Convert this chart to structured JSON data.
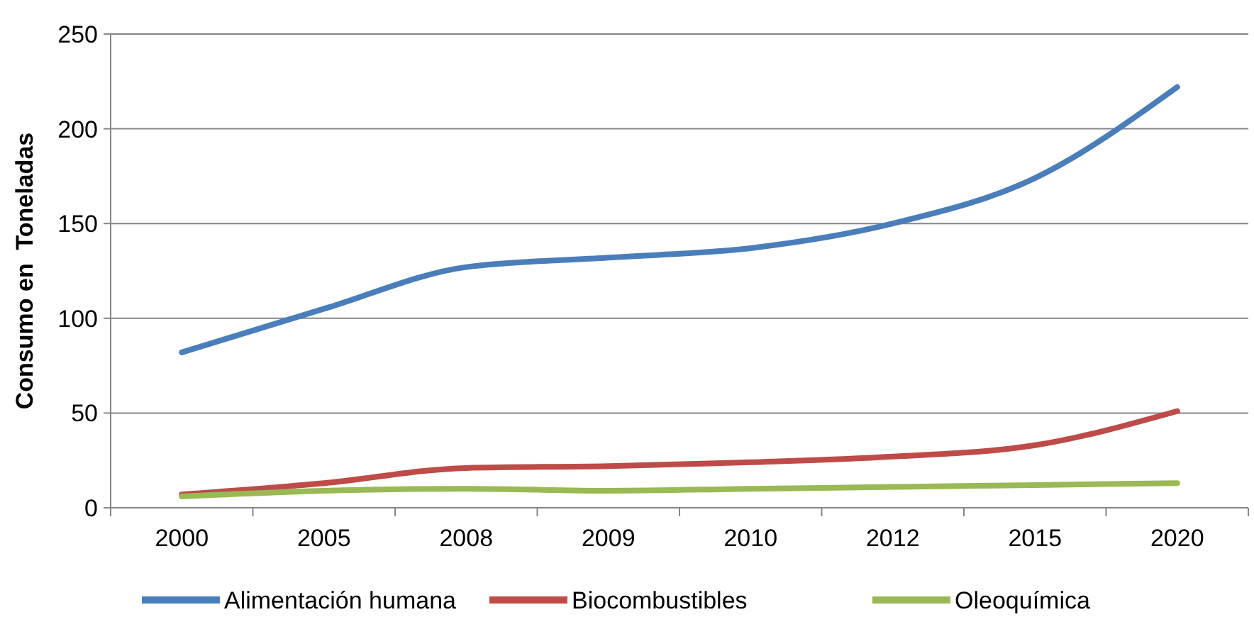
{
  "chart_data": {
    "type": "line",
    "ylabel": "Consumo en  Toneladas",
    "categories": [
      "2000",
      "2005",
      "2008",
      "2009",
      "2010",
      "2012",
      "2015",
      "2020"
    ],
    "series": [
      {
        "name": "Alimentación humana",
        "color": "#4a7ebb",
        "values": [
          82,
          105,
          127,
          132,
          137,
          150,
          174,
          222
        ]
      },
      {
        "name": "Biocombustibles",
        "color": "#be4b48",
        "values": [
          7,
          13,
          21,
          22,
          24,
          27,
          33,
          51
        ]
      },
      {
        "name": "Oleoquímica",
        "color": "#98b954",
        "values": [
          6,
          9,
          10,
          9,
          10,
          11,
          12,
          13
        ]
      }
    ],
    "ylim": [
      0,
      250
    ],
    "yticks": [
      0,
      50,
      100,
      150,
      200,
      250
    ],
    "grid": "y",
    "legend": "bottom",
    "marker": "none",
    "line_style": "solid"
  }
}
